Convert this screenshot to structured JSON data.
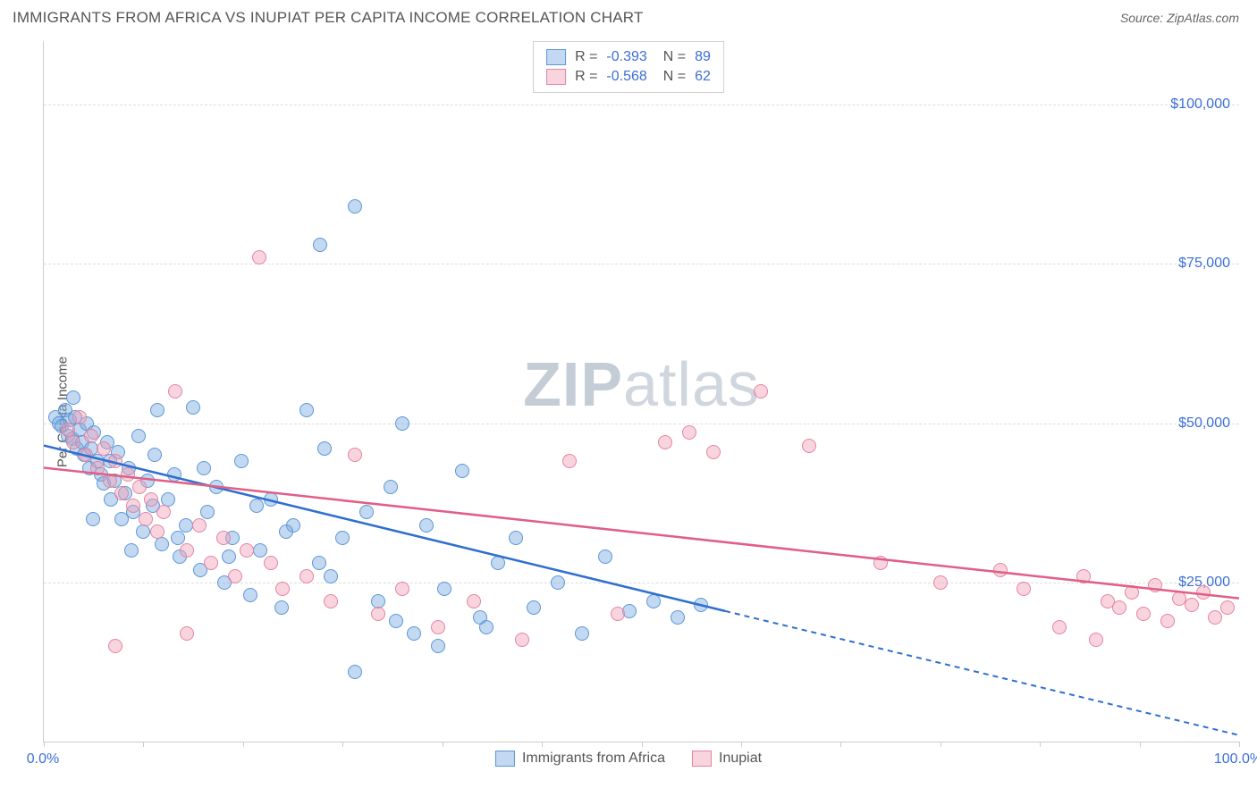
{
  "header": {
    "title": "IMMIGRANTS FROM AFRICA VS INUPIAT PER CAPITA INCOME CORRELATION CHART",
    "source_prefix": "Source: ",
    "source_name": "ZipAtlas.com"
  },
  "watermark": {
    "bold": "ZIP",
    "rest": "atlas"
  },
  "chart": {
    "type": "scatter",
    "ylabel": "Per Capita Income",
    "background_color": "#ffffff",
    "grid_color": "#dddddd",
    "axis_color": "#cccccc",
    "tick_label_color": "#3b6fd6",
    "tick_fontsize": 16,
    "label_fontsize": 15,
    "xlim": [
      0,
      100
    ],
    "ylim": [
      0,
      110000
    ],
    "xticks": [
      0,
      8.33,
      16.67,
      25,
      33.33,
      41.67,
      50,
      58.33,
      66.67,
      75,
      83.33,
      91.67,
      100
    ],
    "xtick_labels": {
      "0": "0.0%",
      "100": "100.0%"
    },
    "yticks": [
      25000,
      50000,
      75000,
      100000
    ],
    "ytick_labels": [
      "$25,000",
      "$50,000",
      "$75,000",
      "$100,000"
    ],
    "marker_radius": 8,
    "marker_border_width": 1.5,
    "series": [
      {
        "name": "Immigrants from Africa",
        "fill": "rgba(120,170,225,0.45)",
        "stroke": "#5d96d6",
        "line_color": "#2f6fd0",
        "line_width": 2.5,
        "R": "-0.393",
        "N": "89",
        "reg_line": {
          "x1": 0,
          "y1": 46500,
          "x2_solid": 57,
          "y2_solid": 20500,
          "x2_dash": 100,
          "y2_dash": 1000
        },
        "points": [
          [
            1,
            51000
          ],
          [
            1.3,
            50000
          ],
          [
            1.5,
            49500
          ],
          [
            1.8,
            52000
          ],
          [
            2,
            48000
          ],
          [
            2.2,
            50500
          ],
          [
            2.4,
            47500
          ],
          [
            2.6,
            51000
          ],
          [
            2.8,
            46000
          ],
          [
            3,
            49000
          ],
          [
            3.2,
            47000
          ],
          [
            3.4,
            45000
          ],
          [
            3.6,
            50000
          ],
          [
            3.8,
            43000
          ],
          [
            4,
            46000
          ],
          [
            4.2,
            48500
          ],
          [
            4.5,
            44000
          ],
          [
            4.8,
            42000
          ],
          [
            5,
            40500
          ],
          [
            5.3,
            47000
          ],
          [
            5.6,
            38000
          ],
          [
            5.9,
            41000
          ],
          [
            6.2,
            45500
          ],
          [
            6.5,
            35000
          ],
          [
            6.8,
            39000
          ],
          [
            7.1,
            43000
          ],
          [
            7.5,
            36000
          ],
          [
            7.9,
            48000
          ],
          [
            8.3,
            33000
          ],
          [
            8.7,
            41000
          ],
          [
            9.1,
            37000
          ],
          [
            9.5,
            52000
          ],
          [
            9.9,
            31000
          ],
          [
            10.4,
            38000
          ],
          [
            10.9,
            42000
          ],
          [
            11.4,
            29000
          ],
          [
            11.9,
            34000
          ],
          [
            12.5,
            52500
          ],
          [
            13.1,
            27000
          ],
          [
            13.7,
            36000
          ],
          [
            14.4,
            40000
          ],
          [
            15.1,
            25000
          ],
          [
            15.8,
            32000
          ],
          [
            16.5,
            44000
          ],
          [
            17.3,
            23000
          ],
          [
            18.1,
            30000
          ],
          [
            19,
            38000
          ],
          [
            19.9,
            21000
          ],
          [
            20.9,
            34000
          ],
          [
            22,
            52000
          ],
          [
            23.1,
            78000
          ],
          [
            23.5,
            46000
          ],
          [
            24,
            26000
          ],
          [
            25,
            32000
          ],
          [
            26,
            84000
          ],
          [
            27,
            36000
          ],
          [
            28,
            22000
          ],
          [
            29,
            40000
          ],
          [
            30,
            50000
          ],
          [
            31,
            17000
          ],
          [
            32,
            34000
          ],
          [
            33.5,
            24000
          ],
          [
            35,
            42500
          ],
          [
            36.5,
            19500
          ],
          [
            38,
            28000
          ],
          [
            39.5,
            32000
          ],
          [
            41,
            21000
          ],
          [
            43,
            25000
          ],
          [
            45,
            17000
          ],
          [
            47,
            29000
          ],
          [
            49,
            20500
          ],
          [
            51,
            22000
          ],
          [
            53,
            19500
          ],
          [
            55,
            21500
          ],
          [
            2.5,
            54000
          ],
          [
            4.1,
            35000
          ],
          [
            5.5,
            44000
          ],
          [
            7.3,
            30000
          ],
          [
            9.3,
            45000
          ],
          [
            11.2,
            32000
          ],
          [
            13.4,
            43000
          ],
          [
            15.5,
            29000
          ],
          [
            17.8,
            37000
          ],
          [
            20.3,
            33000
          ],
          [
            23,
            28000
          ],
          [
            26,
            11000
          ],
          [
            29.5,
            19000
          ],
          [
            33,
            15000
          ],
          [
            37,
            18000
          ]
        ]
      },
      {
        "name": "Inupiat",
        "fill": "rgba(240,160,185,0.45)",
        "stroke": "#e683a1",
        "line_color": "#e05f86",
        "line_width": 2.5,
        "R": "-0.568",
        "N": "62",
        "reg_line": {
          "x1": 0,
          "y1": 43000,
          "x2_solid": 100,
          "y2_solid": 22500
        },
        "points": [
          [
            2,
            49000
          ],
          [
            2.5,
            47000
          ],
          [
            3,
            51000
          ],
          [
            3.5,
            45000
          ],
          [
            4,
            48000
          ],
          [
            4.5,
            43000
          ],
          [
            5,
            46000
          ],
          [
            5.5,
            41000
          ],
          [
            6,
            44000
          ],
          [
            6.5,
            39000
          ],
          [
            7,
            42000
          ],
          [
            7.5,
            37000
          ],
          [
            8,
            40000
          ],
          [
            8.5,
            35000
          ],
          [
            9,
            38000
          ],
          [
            9.5,
            33000
          ],
          [
            10,
            36000
          ],
          [
            11,
            55000
          ],
          [
            12,
            30000
          ],
          [
            13,
            34000
          ],
          [
            14,
            28000
          ],
          [
            15,
            32000
          ],
          [
            16,
            26000
          ],
          [
            17,
            30000
          ],
          [
            18,
            76000
          ],
          [
            19,
            28000
          ],
          [
            20,
            24000
          ],
          [
            22,
            26000
          ],
          [
            24,
            22000
          ],
          [
            26,
            45000
          ],
          [
            28,
            20000
          ],
          [
            30,
            24000
          ],
          [
            33,
            18000
          ],
          [
            36,
            22000
          ],
          [
            40,
            16000
          ],
          [
            44,
            44000
          ],
          [
            48,
            20000
          ],
          [
            52,
            47000
          ],
          [
            54,
            48500
          ],
          [
            56,
            45500
          ],
          [
            60,
            55000
          ],
          [
            64,
            46500
          ],
          [
            70,
            28000
          ],
          [
            75,
            25000
          ],
          [
            80,
            27000
          ],
          [
            82,
            24000
          ],
          [
            85,
            18000
          ],
          [
            87,
            26000
          ],
          [
            89,
            22000
          ],
          [
            90,
            21000
          ],
          [
            91,
            23500
          ],
          [
            92,
            20000
          ],
          [
            93,
            24500
          ],
          [
            94,
            19000
          ],
          [
            95,
            22500
          ],
          [
            96,
            21500
          ],
          [
            97,
            23500
          ],
          [
            98,
            19500
          ],
          [
            99,
            21000
          ],
          [
            88,
            16000
          ],
          [
            6,
            15000
          ],
          [
            12,
            17000
          ]
        ]
      }
    ],
    "legend_bottom": [
      "Immigrants from Africa",
      "Inupiat"
    ]
  }
}
